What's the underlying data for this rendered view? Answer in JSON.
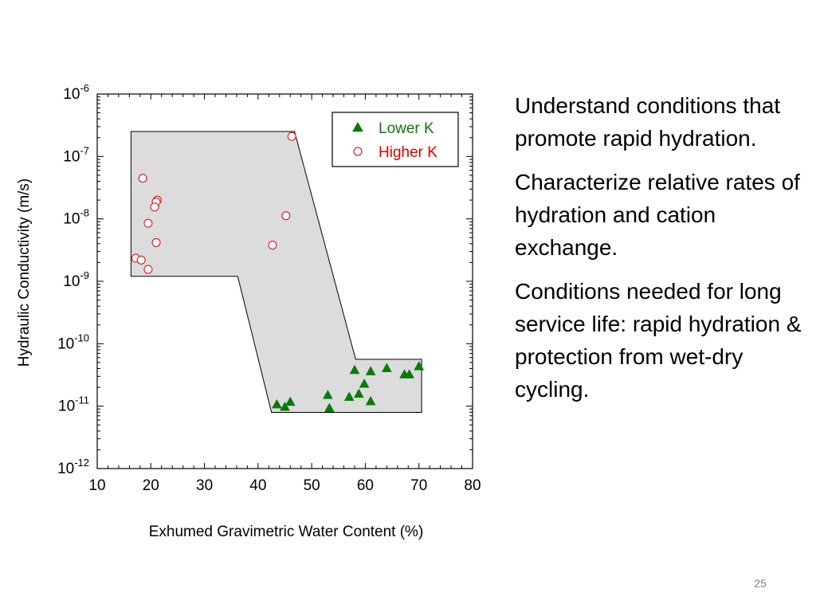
{
  "slide": {
    "number": "25",
    "bullets": [
      "Understand conditions that promote rapid hydration.",
      "Characterize relative rates of hydration and cation exchange.",
      "Conditions needed for long service life: rapid hydration & protection from wet-dry cycling."
    ]
  },
  "chart_data": {
    "type": "scatter",
    "xlabel": "Exhumed Gravimetric Water Content (%)",
    "ylabel": "Hydraulic Conductivity (m/s)",
    "xlim": [
      10,
      80
    ],
    "ylim": [
      -12,
      -6
    ],
    "y_scale": "log10",
    "x_ticks": [
      10,
      20,
      30,
      40,
      50,
      60,
      70,
      80
    ],
    "y_ticks": [
      {
        "base": "10",
        "exp": "-6",
        "value": -6
      },
      {
        "base": "10",
        "exp": "-7",
        "value": -7
      },
      {
        "base": "10",
        "exp": "-8",
        "value": -8
      },
      {
        "base": "10",
        "exp": "-9",
        "value": -9
      },
      {
        "base": "10",
        "exp": "-10",
        "value": -10
      },
      {
        "base": "10",
        "exp": "-11",
        "value": -11
      },
      {
        "base": "10",
        "exp": "-12",
        "value": -12
      }
    ],
    "grid": false,
    "legend_position": "top-right",
    "region": {
      "fill": "#dcdcdc",
      "polygon": [
        [
          16.3,
          -6.6
        ],
        [
          46.8,
          -6.6
        ],
        [
          58.2,
          -10.25
        ],
        [
          70.5,
          -10.25
        ],
        [
          70.5,
          -11.1
        ],
        [
          42.5,
          -11.1
        ],
        [
          36.2,
          -8.92
        ],
        [
          16.3,
          -8.92
        ]
      ]
    },
    "series": [
      {
        "name": "Lower K",
        "marker": "triangle",
        "color": "#0a7a0a",
        "points": [
          [
            43.5,
            -10.97
          ],
          [
            45.0,
            -11.01
          ],
          [
            46.0,
            -10.93
          ],
          [
            53.0,
            -10.82
          ],
          [
            53.3,
            -11.03
          ],
          [
            57.0,
            -10.85
          ],
          [
            58.0,
            -10.42
          ],
          [
            58.8,
            -10.8
          ],
          [
            59.8,
            -10.64
          ],
          [
            61.0,
            -10.44
          ],
          [
            61.0,
            -10.92
          ],
          [
            64.0,
            -10.39
          ],
          [
            67.3,
            -10.49
          ],
          [
            68.2,
            -10.49
          ],
          [
            70.0,
            -10.36
          ]
        ]
      },
      {
        "name": "Higher K",
        "marker": "circle",
        "color": "#e00000",
        "points": [
          [
            46.3,
            -6.68
          ],
          [
            18.5,
            -7.35
          ],
          [
            21.2,
            -7.7
          ],
          [
            21.0,
            -7.73
          ],
          [
            20.7,
            -7.81
          ],
          [
            19.5,
            -8.07
          ],
          [
            45.2,
            -7.95
          ],
          [
            21.0,
            -8.38
          ],
          [
            42.7,
            -8.42
          ],
          [
            17.2,
            -8.63
          ],
          [
            18.2,
            -8.66
          ],
          [
            19.5,
            -8.81
          ]
        ]
      }
    ]
  }
}
